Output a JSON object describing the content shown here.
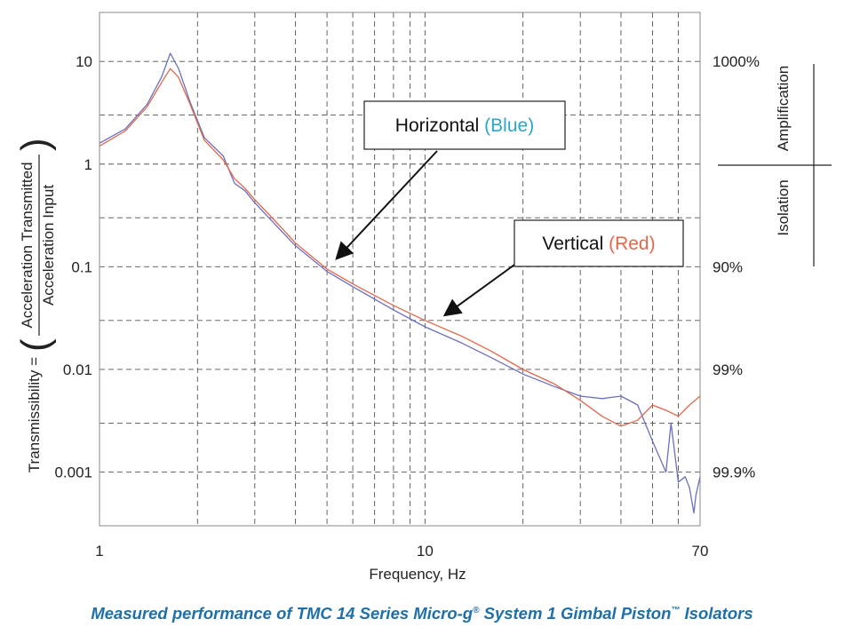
{
  "chart_data": {
    "type": "line",
    "x_scale": "log",
    "y_scale": "log",
    "xlim": [
      1,
      70
    ],
    "ylim": [
      0.0003,
      30
    ],
    "grid": true,
    "x_ticks": [
      {
        "value": 1,
        "label": "1"
      },
      {
        "value": 10,
        "label": "10"
      },
      {
        "value": 70,
        "label": "70"
      }
    ],
    "x_minor_ticks": [
      2,
      3,
      4,
      5,
      6,
      7,
      8,
      9,
      20,
      30,
      40,
      50,
      60
    ],
    "y_ticks": [
      {
        "value": 10,
        "label": "10"
      },
      {
        "value": 1,
        "label": "1"
      },
      {
        "value": 0.1,
        "label": "0.1"
      },
      {
        "value": 0.01,
        "label": "0.01"
      },
      {
        "value": 0.001,
        "label": "0.001"
      }
    ],
    "y_minor_ticks": [
      3,
      0.3,
      0.03,
      0.003
    ],
    "right_ticks": [
      {
        "value": 10,
        "label": "1000%"
      },
      {
        "value": 0.1,
        "label": "90%"
      },
      {
        "value": 0.01,
        "label": "99%"
      },
      {
        "value": 0.001,
        "label": "99.9%"
      }
    ],
    "xlabel": "Frequency, Hz",
    "ylabel_prefix": "Transmissibility =",
    "ylabel_numerator": "Acceleration Transmitted",
    "ylabel_denominator": "Acceleration Input",
    "right_label_top": "Amplification",
    "right_label_bottom": "Isolation",
    "series": [
      {
        "name": "Horizontal (Blue)",
        "color": "#6a6fc0",
        "x": [
          1,
          1.2,
          1.4,
          1.55,
          1.65,
          1.75,
          1.9,
          2.1,
          2.4,
          2.6,
          2.8,
          3.0,
          3.5,
          4,
          5,
          6,
          8,
          10,
          13,
          16,
          20,
          25,
          30,
          35,
          40,
          45,
          50,
          55,
          57,
          60,
          63,
          65,
          67,
          68,
          70
        ],
        "y": [
          1.6,
          2.2,
          3.8,
          7,
          12,
          8.5,
          4.0,
          1.8,
          1.2,
          0.65,
          0.55,
          0.42,
          0.25,
          0.16,
          0.09,
          0.064,
          0.038,
          0.026,
          0.018,
          0.013,
          0.009,
          0.0068,
          0.0055,
          0.0052,
          0.0055,
          0.0045,
          0.002,
          0.001,
          0.003,
          0.0008,
          0.0009,
          0.0007,
          0.0004,
          0.0006,
          0.0009
        ]
      },
      {
        "name": "Vertical (Red)",
        "color": "#e0684a",
        "x": [
          1,
          1.2,
          1.4,
          1.55,
          1.65,
          1.75,
          1.9,
          2.1,
          2.4,
          2.6,
          2.8,
          3.0,
          3.5,
          4,
          5,
          6,
          8,
          10,
          13,
          16,
          20,
          25,
          30,
          35,
          40,
          45,
          50,
          55,
          60,
          65,
          70
        ],
        "y": [
          1.5,
          2.1,
          3.6,
          6.2,
          8.5,
          7.0,
          3.8,
          1.7,
          1.1,
          0.72,
          0.58,
          0.45,
          0.27,
          0.17,
          0.095,
          0.068,
          0.042,
          0.03,
          0.021,
          0.015,
          0.01,
          0.0072,
          0.005,
          0.0035,
          0.0028,
          0.0032,
          0.0045,
          0.004,
          0.0035,
          0.0045,
          0.0055
        ]
      }
    ],
    "annotations": [
      {
        "prefix": "Horizontal",
        "highlight": "(Blue)",
        "highlight_color": "#2aa7c7",
        "arrow_to": [
          5,
          0.12
        ]
      },
      {
        "prefix": "Vertical",
        "highlight": "(Red)",
        "highlight_color": "#e0684a",
        "arrow_to": [
          10.5,
          0.035
        ]
      }
    ]
  },
  "caption": {
    "part1": "Measured performance of TMC 14 Series Micro-g",
    "mark1": "®",
    "part2": " System 1 Gimbal Piston",
    "mark2": "™",
    "part3": " Isolators"
  }
}
